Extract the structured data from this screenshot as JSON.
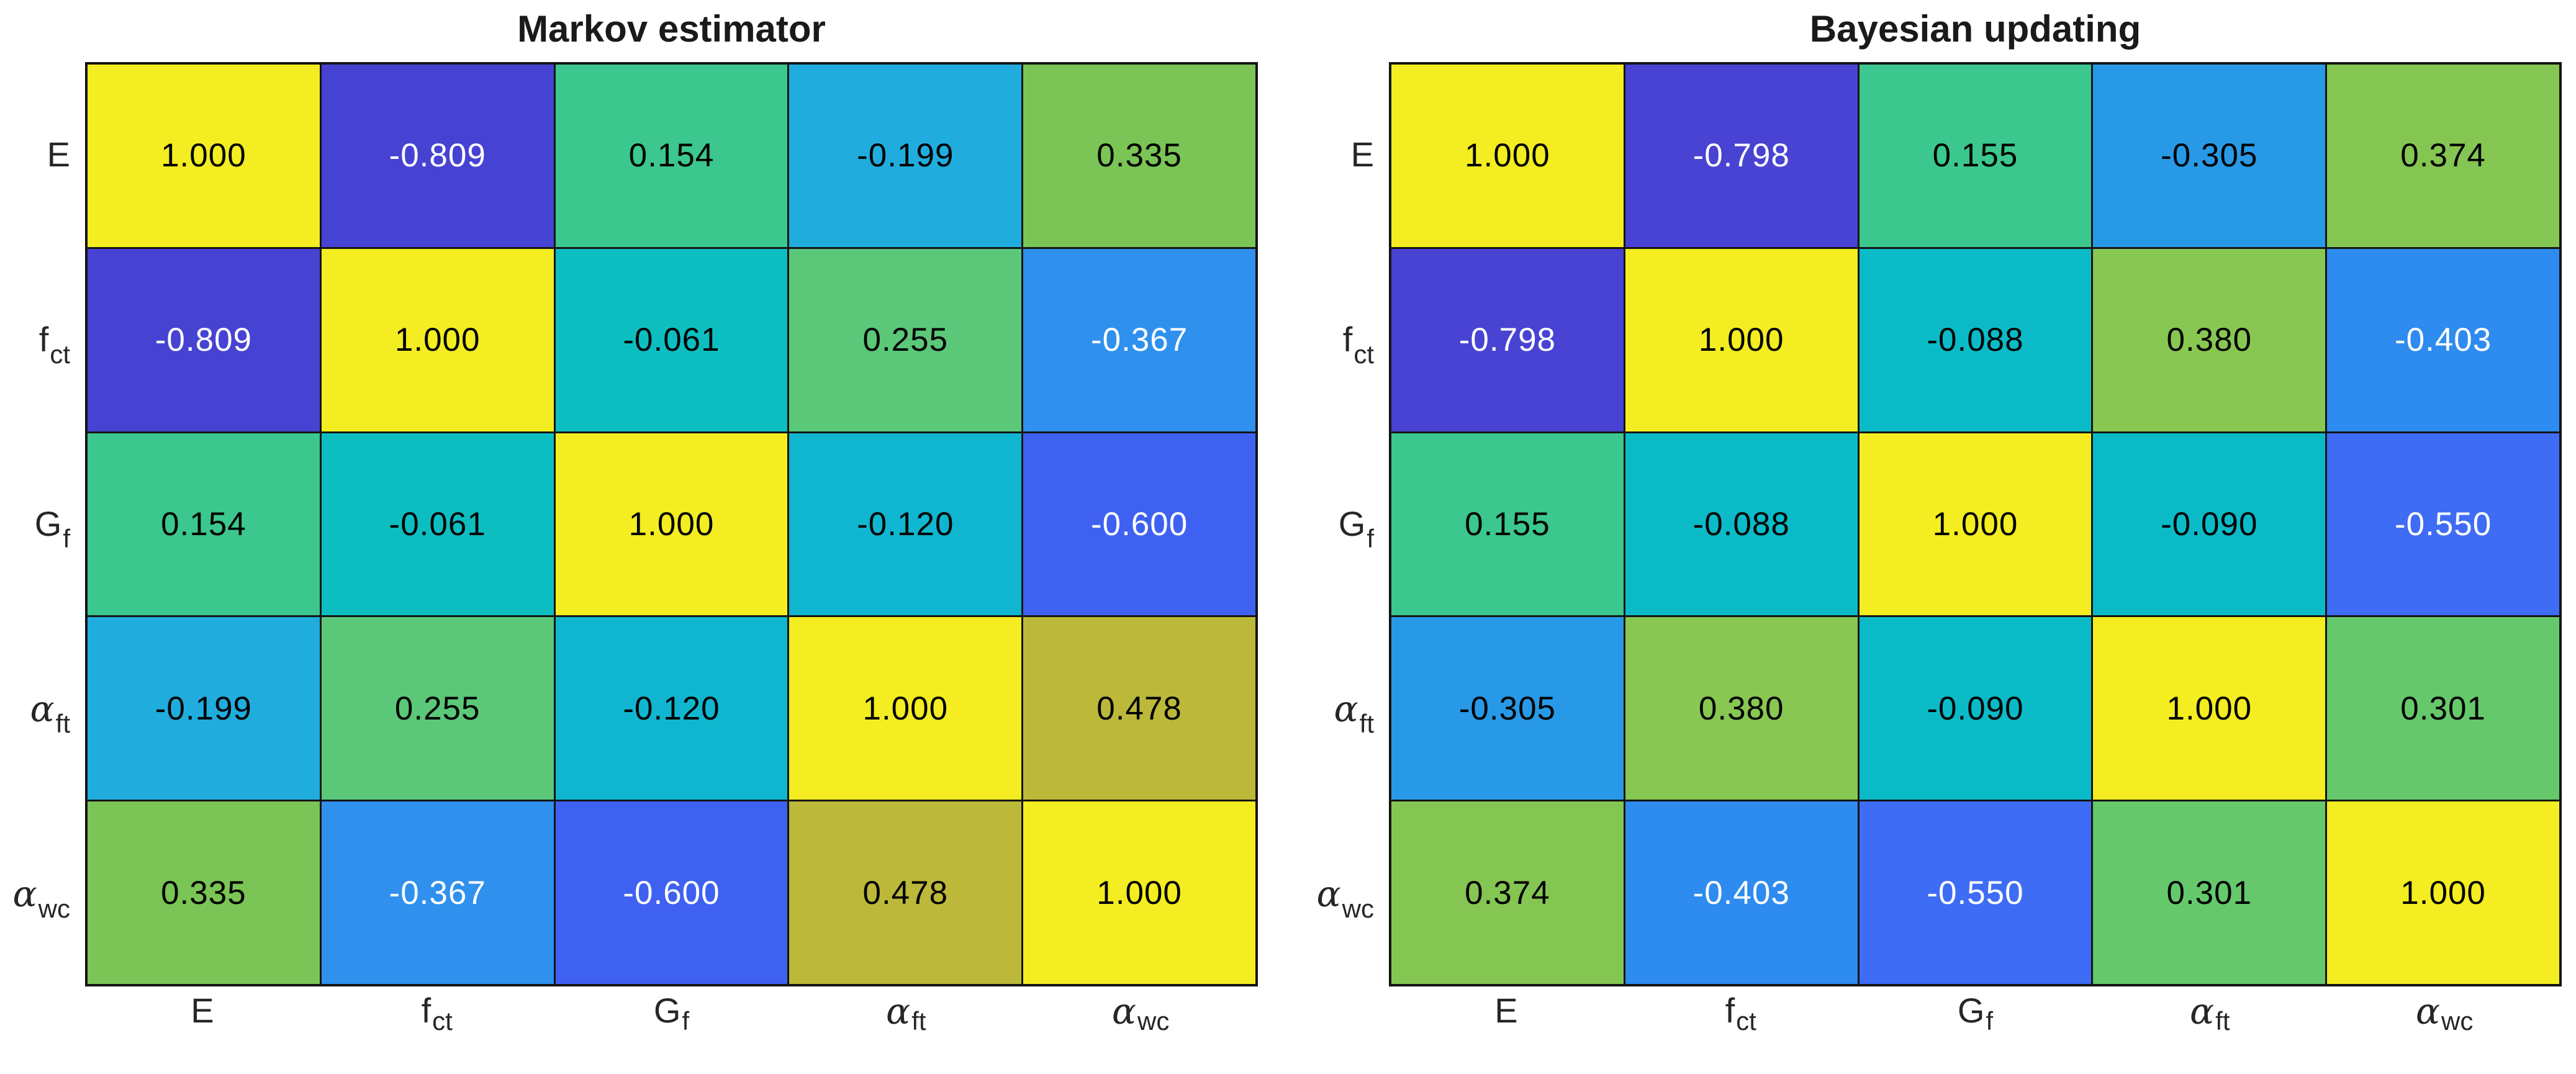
{
  "figure": {
    "background": "#ffffff",
    "grid_line_color": "#141414",
    "tick_label_color": "#262626",
    "title_color": "#1a1a1a"
  },
  "chart_data": [
    {
      "type": "heatmap",
      "title": "Markov estimator",
      "colormap": "parula",
      "value_range": [
        -1,
        1
      ],
      "row_labels": [
        {
          "base": "E",
          "sub": "",
          "greek": false
        },
        {
          "base": "f",
          "sub": "ct",
          "greek": false
        },
        {
          "base": "G",
          "sub": "f",
          "greek": false
        },
        {
          "base": "α",
          "sub": "ft",
          "greek": true
        },
        {
          "base": "α",
          "sub": "wc",
          "greek": true
        }
      ],
      "col_labels": [
        {
          "base": "E",
          "sub": "",
          "greek": false
        },
        {
          "base": "f",
          "sub": "ct",
          "greek": false
        },
        {
          "base": "G",
          "sub": "f",
          "greek": false
        },
        {
          "base": "α",
          "sub": "ft",
          "greek": true
        },
        {
          "base": "α",
          "sub": "wc",
          "greek": true
        }
      ],
      "values": [
        [
          1.0,
          -0.809,
          0.154,
          -0.199,
          0.335
        ],
        [
          -0.809,
          1.0,
          -0.061,
          0.255,
          -0.367
        ],
        [
          0.154,
          -0.061,
          1.0,
          -0.12,
          -0.6
        ],
        [
          -0.199,
          0.255,
          -0.12,
          1.0,
          0.478
        ],
        [
          0.335,
          -0.367,
          -0.6,
          0.478,
          1.0
        ]
      ],
      "cell_colors": [
        [
          "#F3ED21",
          "#4643D3",
          "#3BC78D",
          "#20ADDE",
          "#7AC555"
        ],
        [
          "#4643D3",
          "#F3ED21",
          "#0DBEC1",
          "#5BC879",
          "#2F90EE"
        ],
        [
          "#3BC78D",
          "#0DBEC1",
          "#F3ED21",
          "#10B6CF",
          "#3F61F2"
        ],
        [
          "#20ADDE",
          "#5BC879",
          "#10B6CF",
          "#F3ED21",
          "#BCB93A"
        ],
        [
          "#7AC555",
          "#2F90EE",
          "#3F61F2",
          "#BCB93A",
          "#F3ED21"
        ]
      ],
      "text_colors": [
        [
          "#000000",
          "#ffffff",
          "#000000",
          "#000000",
          "#000000"
        ],
        [
          "#ffffff",
          "#000000",
          "#000000",
          "#000000",
          "#ffffff"
        ],
        [
          "#000000",
          "#000000",
          "#000000",
          "#000000",
          "#ffffff"
        ],
        [
          "#000000",
          "#000000",
          "#000000",
          "#000000",
          "#000000"
        ],
        [
          "#000000",
          "#ffffff",
          "#ffffff",
          "#000000",
          "#000000"
        ]
      ]
    },
    {
      "type": "heatmap",
      "title": "Bayesian updating",
      "colormap": "parula",
      "value_range": [
        -1,
        1
      ],
      "row_labels": [
        {
          "base": "E",
          "sub": "",
          "greek": false
        },
        {
          "base": "f",
          "sub": "ct",
          "greek": false
        },
        {
          "base": "G",
          "sub": "f",
          "greek": false
        },
        {
          "base": "α",
          "sub": "ft",
          "greek": true
        },
        {
          "base": "α",
          "sub": "wc",
          "greek": true
        }
      ],
      "col_labels": [
        {
          "base": "E",
          "sub": "",
          "greek": false
        },
        {
          "base": "f",
          "sub": "ct",
          "greek": false
        },
        {
          "base": "G",
          "sub": "f",
          "greek": false
        },
        {
          "base": "α",
          "sub": "ft",
          "greek": true
        },
        {
          "base": "α",
          "sub": "wc",
          "greek": true
        }
      ],
      "values": [
        [
          1.0,
          -0.798,
          0.155,
          -0.305,
          0.374
        ],
        [
          -0.798,
          1.0,
          -0.088,
          0.38,
          -0.403
        ],
        [
          0.155,
          -0.088,
          1.0,
          -0.09,
          -0.55
        ],
        [
          -0.305,
          0.38,
          -0.09,
          1.0,
          0.301
        ],
        [
          0.374,
          -0.403,
          -0.55,
          0.301,
          1.0
        ]
      ],
      "cell_colors": [
        [
          "#F3ED21",
          "#4843D2",
          "#3BC78D",
          "#2899E6",
          "#85C653"
        ],
        [
          "#4843D2",
          "#F3ED21",
          "#0ABBC7",
          "#88C751",
          "#2E8BEF"
        ],
        [
          "#3BC78D",
          "#0ABBC7",
          "#F3ED21",
          "#0ABBC7",
          "#3F6CF5"
        ],
        [
          "#2899E6",
          "#88C751",
          "#0ABBC7",
          "#F3ED21",
          "#65C96C"
        ],
        [
          "#85C653",
          "#2E8BEF",
          "#3F6CF5",
          "#65C96C",
          "#F3ED21"
        ]
      ],
      "text_colors": [
        [
          "#000000",
          "#ffffff",
          "#000000",
          "#000000",
          "#000000"
        ],
        [
          "#ffffff",
          "#000000",
          "#000000",
          "#000000",
          "#ffffff"
        ],
        [
          "#000000",
          "#000000",
          "#000000",
          "#000000",
          "#ffffff"
        ],
        [
          "#000000",
          "#000000",
          "#000000",
          "#000000",
          "#000000"
        ],
        [
          "#000000",
          "#ffffff",
          "#ffffff",
          "#000000",
          "#000000"
        ]
      ]
    }
  ]
}
